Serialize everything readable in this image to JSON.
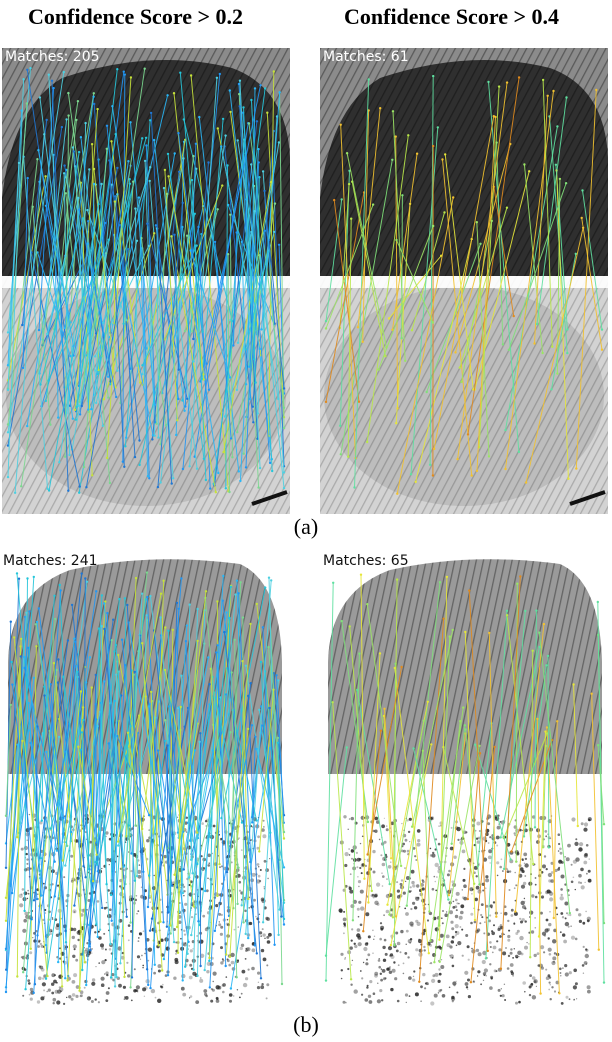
{
  "titles": {
    "left": "Confidence Score > 0.2",
    "right": "Confidence Score > 0.4"
  },
  "captions": {
    "a": "(a)",
    "b": "(b)"
  },
  "panels": {
    "a_left": {
      "matches_label": "Matches: 205",
      "match_count": 205,
      "palette": "blue"
    },
    "a_right": {
      "matches_label": "Matches: 61",
      "match_count": 61,
      "palette": "green-orange"
    },
    "b_left": {
      "matches_label": "Matches: 241",
      "match_count": 241,
      "palette": "blue"
    },
    "b_right": {
      "matches_label": "Matches: 65",
      "match_count": 65,
      "palette": "green-orange"
    }
  },
  "colors": {
    "blue_lines": [
      "#1f77d4",
      "#2196f3",
      "#29b6f6",
      "#26c6da",
      "#4dd0e1",
      "#7bd88f",
      "#c6e23a"
    ],
    "warm_lines": [
      "#9be564",
      "#7fe07a",
      "#b9e84a",
      "#e6e63a",
      "#f2c230",
      "#e08a1e",
      "#5fe0a0"
    ],
    "label_light": "#ffffff",
    "label_dark": "#111111"
  }
}
